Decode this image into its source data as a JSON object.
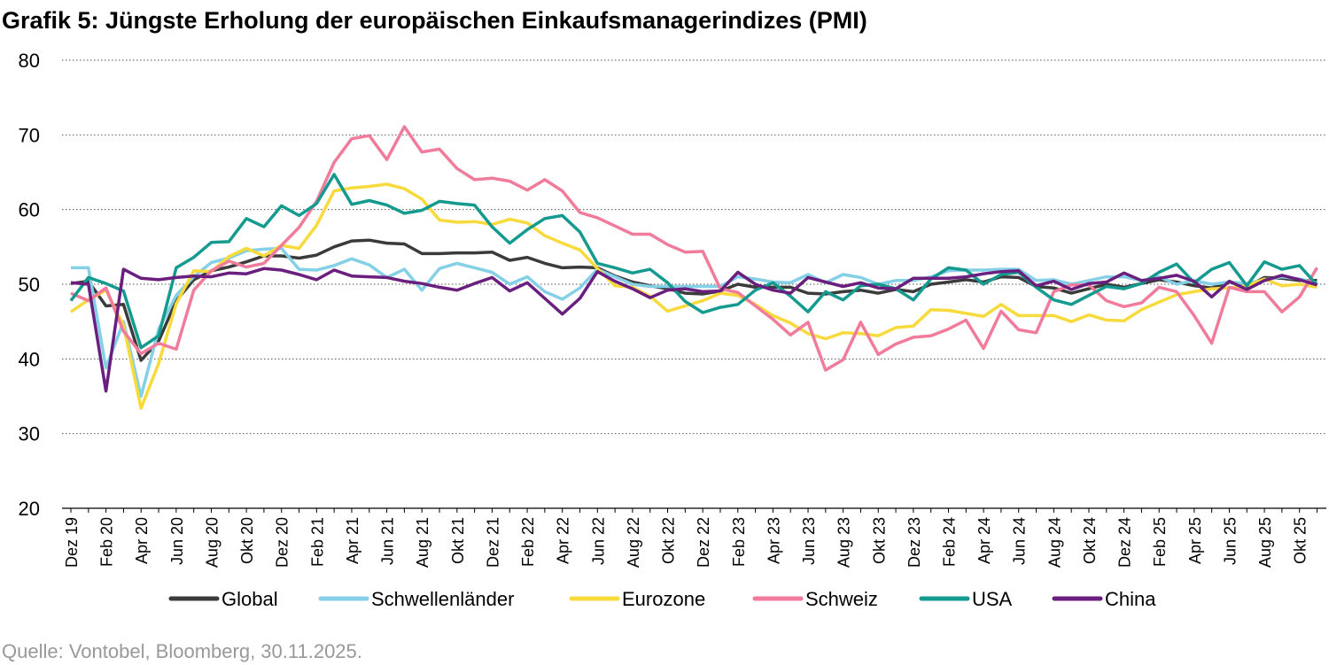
{
  "chart_data": {
    "type": "line",
    "title": "Grafik 5: Jüngste Erholung der europäischen Einkaufsmanagerindizes (PMI)",
    "source": "Quelle: Vontobel, Bloomberg, 30.11.2025.",
    "categories": [
      "Dez 19",
      null,
      "Feb 20",
      null,
      "Apr 20",
      null,
      "Jun 20",
      null,
      "Aug 20",
      null,
      "Okt 20",
      null,
      "Dez 20",
      null,
      "Feb 21",
      null,
      "Apr 21",
      null,
      "Jun 21",
      null,
      "Aug 21",
      null,
      "Okt 21",
      null,
      "Dez 21",
      null,
      "Feb 22",
      null,
      "Apr 22",
      null,
      "Jun 22",
      null,
      "Aug 22",
      null,
      "Okt 22",
      null,
      "Dez 22",
      null,
      "Feb 23",
      null,
      "Apr 23",
      null,
      "Jun 23",
      null,
      "Aug 23",
      null,
      "Okt 23",
      null,
      "Dez 23",
      null,
      "Feb 24",
      null,
      "Apr 24",
      null,
      "Jun 24",
      null,
      "Aug 24",
      null,
      "Okt 24",
      null,
      "Dez 24",
      null,
      "Feb 25",
      null,
      "Apr 25",
      null,
      "Jun 25",
      null,
      "Aug 25",
      null,
      "Okt 25",
      null
    ],
    "ylim": [
      20,
      80
    ],
    "yticks": [
      20,
      30,
      40,
      50,
      60,
      70,
      80
    ],
    "grid": true,
    "series": [
      {
        "name": "Global",
        "color": "#3b3b3b",
        "values": [
          50.1,
          50.4,
          47.1,
          47.3,
          39.8,
          42.4,
          47.8,
          50.6,
          51.8,
          52.3,
          53.0,
          53.8,
          53.8,
          53.5,
          53.9,
          55.0,
          55.8,
          55.9,
          55.5,
          55.4,
          54.1,
          54.1,
          54.2,
          54.2,
          54.3,
          53.2,
          53.6,
          52.8,
          52.2,
          52.3,
          52.2,
          51.1,
          50.3,
          49.8,
          49.4,
          48.8,
          48.7,
          49.1,
          50.0,
          49.6,
          49.6,
          49.6,
          48.8,
          48.7,
          49.0,
          49.2,
          48.8,
          49.3,
          49.0,
          50.0,
          50.3,
          50.6,
          50.3,
          51.0,
          50.9,
          49.7,
          49.5,
          48.8,
          49.4,
          50.0,
          49.6,
          50.1,
          50.6,
          50.3,
          49.8,
          49.5,
          50.3,
          49.7,
          50.9,
          50.8,
          50.5,
          50.5
        ]
      },
      {
        "name": "Schwellenländer",
        "color": "#84d0e6",
        "values": [
          52.2,
          52.2,
          38.8,
          45,
          35,
          44,
          48.5,
          51,
          52.9,
          53.5,
          54.5,
          54.7,
          54.8,
          52,
          51.9,
          52.5,
          53.4,
          52.6,
          50.9,
          52,
          49.2,
          52.1,
          52.8,
          52.2,
          51.6,
          50,
          51,
          49,
          48,
          49.5,
          52,
          51,
          50,
          49.7,
          49.7,
          49.7,
          49.7,
          49.7,
          51,
          50.7,
          50.3,
          50.2,
          51.3,
          50.2,
          51.3,
          50.9,
          50,
          50.5,
          50.5,
          51,
          51.8,
          51.9,
          51.9,
          52,
          52,
          50.5,
          50.6,
          50,
          50.5,
          51,
          51,
          50.5,
          51,
          50,
          50.5,
          50,
          50.3,
          50.1,
          50.6,
          51,
          50.7,
          50.2
        ]
      },
      {
        "name": "Eurozone",
        "color": "#f8da3c",
        "values": [
          46.3,
          47.9,
          49.2,
          44.5,
          33.4,
          39.4,
          47.4,
          51.8,
          51.7,
          53.7,
          54.8,
          53.8,
          55.2,
          54.8,
          57.9,
          62.5,
          62.9,
          63.1,
          63.4,
          62.8,
          61.4,
          58.6,
          58.3,
          58.4,
          58,
          58.7,
          58.2,
          56.5,
          55.5,
          54.6,
          52.1,
          49.8,
          49.6,
          48.4,
          46.4,
          47.1,
          47.8,
          48.8,
          48.5,
          47.3,
          45.8,
          44.8,
          43.4,
          42.7,
          43.5,
          43.4,
          43.1,
          44.2,
          44.4,
          46.6,
          46.5,
          46.1,
          45.7,
          47.3,
          45.8,
          45.8,
          45.8,
          45,
          45.9,
          45.2,
          45.1,
          46.6,
          47.6,
          48.6,
          49,
          49.4,
          49.5,
          49.8,
          50.7,
          49.8,
          50,
          49.6
        ]
      },
      {
        "name": "Schweiz",
        "color": "#f07b9b",
        "values": [
          48.8,
          47.8,
          49.5,
          43.7,
          40.7,
          42.1,
          41.3,
          49.2,
          51.8,
          53.1,
          52.3,
          52.8,
          55.2,
          57.6,
          61.1,
          66.3,
          69.5,
          69.9,
          66.7,
          71.1,
          67.7,
          68.1,
          65.5,
          64,
          64.2,
          63.8,
          62.6,
          64,
          62.5,
          59.6,
          58.9,
          57.8,
          56.7,
          56.7,
          55.3,
          54.3,
          54.4,
          49.4,
          48.9,
          47.1,
          45.3,
          43.2,
          44.9,
          38.5,
          39.9,
          44.9,
          40.6,
          42,
          42.9,
          43.1,
          44,
          45.2,
          41.4,
          46.4,
          43.9,
          43.5,
          49,
          49.9,
          49.9,
          47.8,
          47,
          47.5,
          49.6,
          49,
          45.8,
          42.1,
          49.6,
          49,
          49,
          46.3,
          48.3,
          52.2
        ]
      },
      {
        "name": "USA",
        "color": "#159a8f",
        "values": [
          47.8,
          50.9,
          50.1,
          49.1,
          41.5,
          43.1,
          52.2,
          53.6,
          55.6,
          55.7,
          58.8,
          57.7,
          60.5,
          59.2,
          60.8,
          64.7,
          60.7,
          61.2,
          60.6,
          59.5,
          59.9,
          61.1,
          60.8,
          60.6,
          57.7,
          55.5,
          57.3,
          58.8,
          59.2,
          57,
          52.8,
          52.2,
          51.5,
          52,
          50.2,
          47.7,
          46.2,
          46.9,
          47.3,
          49.2,
          50.2,
          48.4,
          46.3,
          49,
          47.9,
          49.8,
          50,
          49.4,
          47.9,
          50.7,
          52.2,
          51.9,
          50,
          51.3,
          51.6,
          49.6,
          47.9,
          47.3,
          48.5,
          49.7,
          49.4,
          50.1,
          51.6,
          52.7,
          50.2,
          52,
          52.9,
          49.8,
          53,
          52,
          52.5,
          49.9
        ]
      },
      {
        "name": "China",
        "color": "#6a1f7e",
        "values": [
          50.2,
          50,
          35.7,
          52,
          50.8,
          50.6,
          50.9,
          51.1,
          51,
          51.5,
          51.4,
          52.1,
          51.9,
          51.3,
          50.6,
          51.9,
          51.1,
          51,
          50.9,
          50.4,
          50.1,
          49.6,
          49.2,
          50.1,
          50.9,
          49.1,
          50.2,
          48.1,
          46,
          48.1,
          51.7,
          50.4,
          49.4,
          48.2,
          49.2,
          49.4,
          49,
          49.1,
          51.6,
          50,
          49.2,
          48.8,
          50.9,
          50.3,
          49.7,
          50.2,
          49.5,
          49.4,
          50.8,
          50.8,
          50.8,
          51,
          51.4,
          51.7,
          51.8,
          49.8,
          50.4,
          49.3,
          50.1,
          50.3,
          51.5,
          50.5,
          50.8,
          51.2,
          50.4,
          48.3,
          50.4,
          49.3,
          50.5,
          51.2,
          50.6,
          49.9
        ]
      }
    ]
  }
}
